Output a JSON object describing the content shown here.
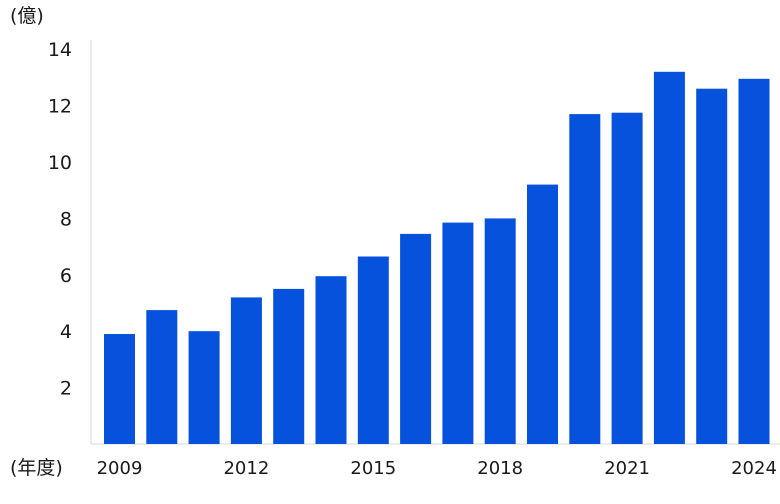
{
  "chart_data": {
    "type": "bar",
    "title": "",
    "ylabel": "(億)",
    "xlabel": "(年度)",
    "categories": [
      "2009",
      "2010",
      "2011",
      "2012",
      "2013",
      "2014",
      "2015",
      "2016",
      "2017",
      "2018",
      "2019",
      "2020",
      "2021",
      "2022",
      "2023",
      "2024"
    ],
    "x_tick_labels": [
      "2009",
      "2012",
      "2015",
      "2018",
      "2021",
      "2024"
    ],
    "y_ticks": [
      "2",
      "4",
      "6",
      "8",
      "10",
      "12",
      "14"
    ],
    "values": [
      3.9,
      4.75,
      4.0,
      5.2,
      5.5,
      5.95,
      6.65,
      7.45,
      7.85,
      8.0,
      9.2,
      11.7,
      11.75,
      13.2,
      12.6,
      12.95
    ],
    "ylim": [
      0,
      14.5
    ],
    "bar_color": "#0652dd",
    "grid": false
  }
}
